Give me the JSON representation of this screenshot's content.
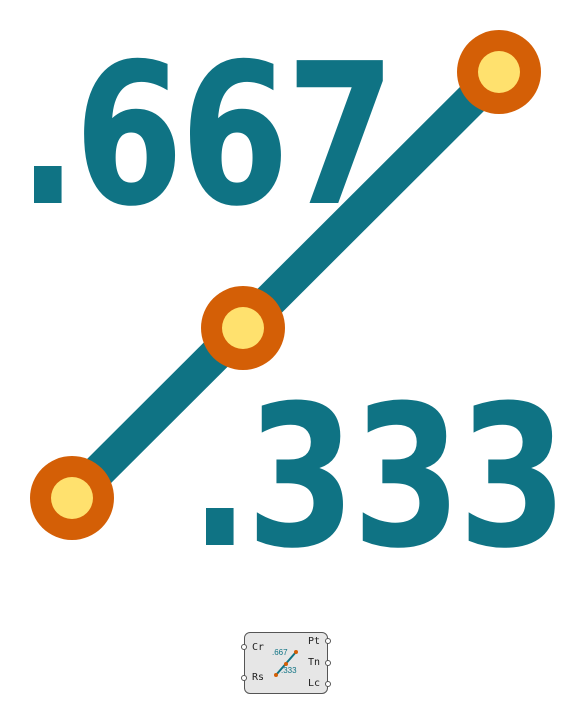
{
  "icon": {
    "top_value": ".667",
    "bottom_value": ".333",
    "colors": {
      "number": "#0f7384",
      "line": "#0f7384",
      "point_ring": "#d45f06",
      "point_fill": "#ffe16e"
    }
  },
  "component": {
    "inputs": [
      "Cr",
      "Rs"
    ],
    "outputs": [
      "Pt",
      "Tn",
      "Lc"
    ],
    "mini_top": ".667",
    "mini_bottom": ".333"
  }
}
